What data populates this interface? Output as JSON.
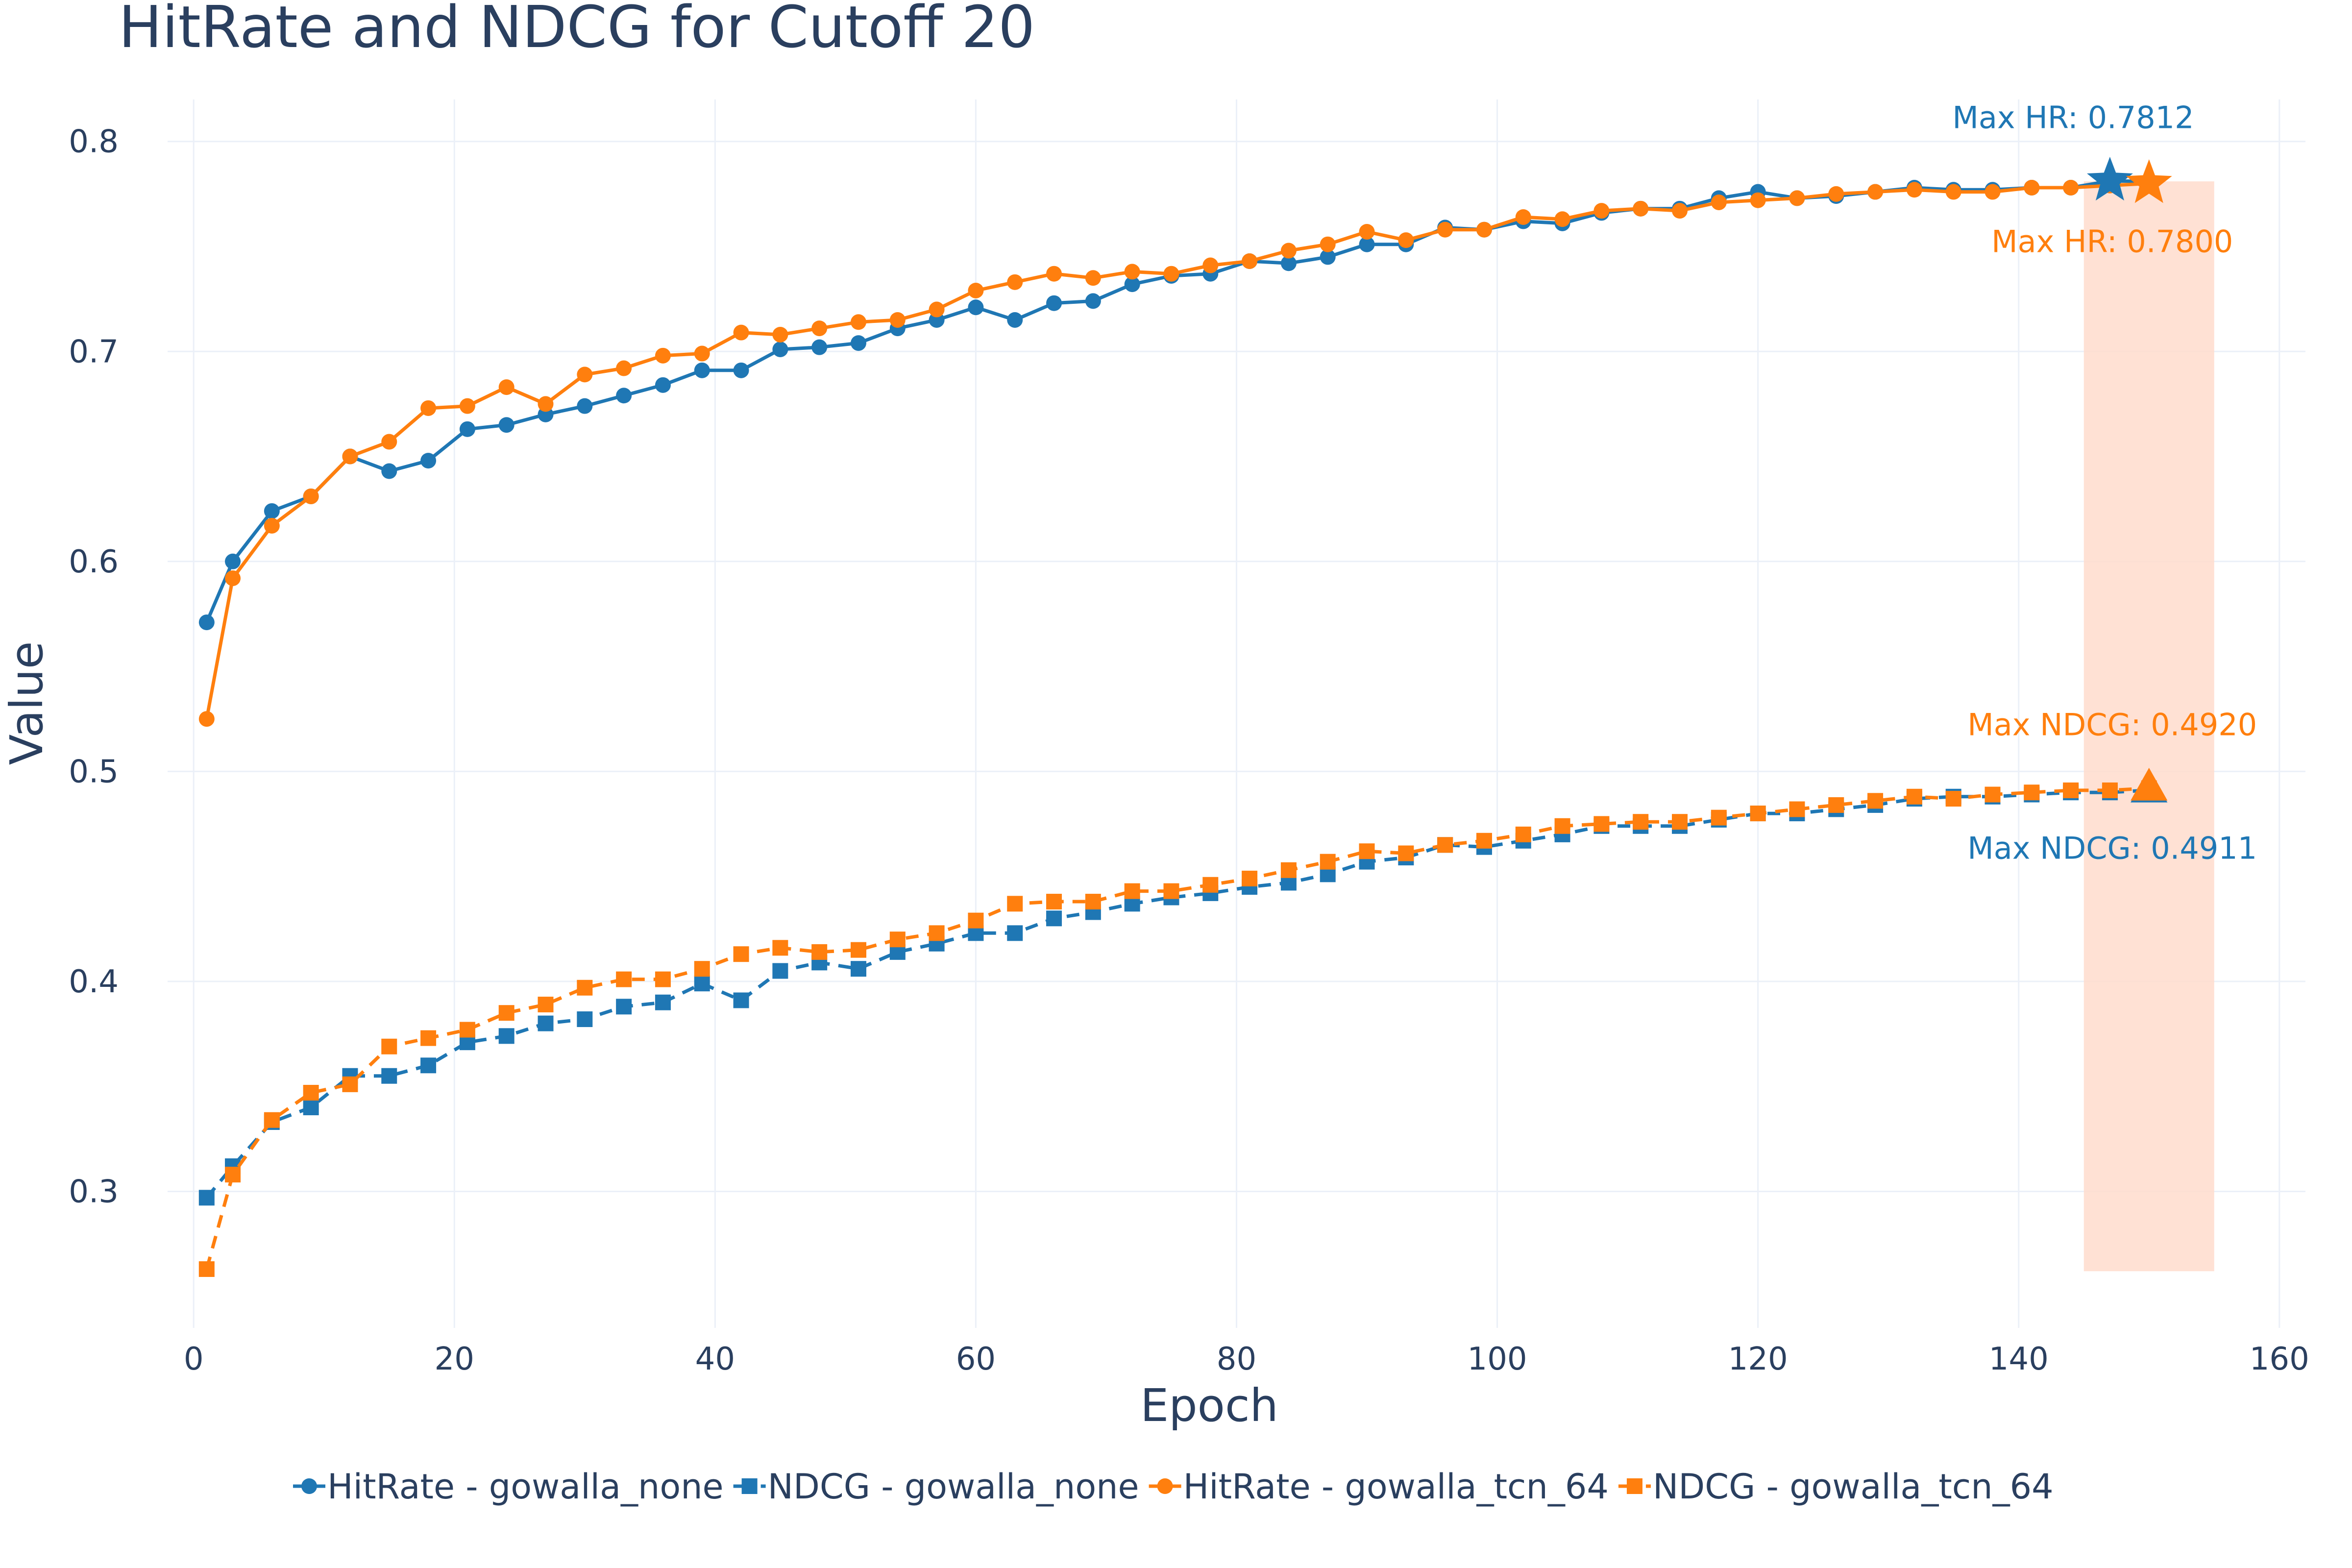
{
  "chart_data": {
    "type": "line",
    "title": "HitRate and NDCG for Cutoff 20",
    "xlabel": "Epoch",
    "ylabel": "Value",
    "xlim": [
      -2,
      162
    ],
    "ylim": [
      0.235,
      0.82
    ],
    "xticks": [
      "0",
      "20",
      "40",
      "60",
      "80",
      "100",
      "120",
      "140",
      "160"
    ],
    "yticks": [
      "0.3",
      "0.4",
      "0.5",
      "0.6",
      "0.7",
      "0.8"
    ],
    "grid": true,
    "legend_position": "bottom",
    "x": [
      1,
      3,
      6,
      9,
      12,
      15,
      18,
      21,
      24,
      27,
      30,
      33,
      36,
      39,
      42,
      45,
      48,
      51,
      54,
      57,
      60,
      63,
      66,
      69,
      72,
      75,
      78,
      81,
      84,
      87,
      90,
      93,
      96,
      99,
      102,
      105,
      108,
      111,
      114,
      117,
      120,
      123,
      126,
      129,
      132,
      135,
      138,
      141,
      144,
      147,
      150
    ],
    "series": [
      {
        "name": "HitRate - gowalla_none",
        "color": "#1f77b4",
        "marker": "circle",
        "dash": "solid",
        "values": [
          0.571,
          0.6,
          0.624,
          0.631,
          0.65,
          0.643,
          0.648,
          0.663,
          0.665,
          0.67,
          0.674,
          0.679,
          0.684,
          0.691,
          0.691,
          0.701,
          0.702,
          0.704,
          0.711,
          0.715,
          0.721,
          0.715,
          0.723,
          0.724,
          0.732,
          0.736,
          0.737,
          0.743,
          0.742,
          0.745,
          0.751,
          0.751,
          0.759,
          0.758,
          0.762,
          0.761,
          0.766,
          0.768,
          0.768,
          0.773,
          0.776,
          0.773,
          0.774,
          0.776,
          0.778,
          0.777,
          0.777,
          0.778,
          0.778,
          0.7812,
          0.781
        ]
      },
      {
        "name": "NDCG - gowalla_none",
        "color": "#1f77b4",
        "marker": "square",
        "dash": "dash",
        "values": [
          0.297,
          0.312,
          0.333,
          0.34,
          0.355,
          0.355,
          0.36,
          0.371,
          0.374,
          0.38,
          0.382,
          0.388,
          0.39,
          0.399,
          0.391,
          0.405,
          0.409,
          0.406,
          0.414,
          0.418,
          0.423,
          0.423,
          0.43,
          0.433,
          0.437,
          0.44,
          0.442,
          0.445,
          0.447,
          0.451,
          0.457,
          0.459,
          0.465,
          0.464,
          0.467,
          0.47,
          0.474,
          0.474,
          0.474,
          0.477,
          0.48,
          0.48,
          0.482,
          0.484,
          0.487,
          0.488,
          0.488,
          0.489,
          0.49,
          0.49,
          0.4911
        ]
      },
      {
        "name": "HitRate - gowalla_tcn_64",
        "color": "#ff7f0e",
        "marker": "circle",
        "dash": "solid",
        "values": [
          0.525,
          0.592,
          0.617,
          0.631,
          0.65,
          0.657,
          0.673,
          0.674,
          0.683,
          0.675,
          0.689,
          0.692,
          0.698,
          0.699,
          0.709,
          0.708,
          0.711,
          0.714,
          0.715,
          0.72,
          0.729,
          0.733,
          0.737,
          0.735,
          0.738,
          0.737,
          0.741,
          0.743,
          0.748,
          0.751,
          0.757,
          0.753,
          0.758,
          0.758,
          0.764,
          0.763,
          0.767,
          0.768,
          0.767,
          0.771,
          0.772,
          0.773,
          0.775,
          0.776,
          0.777,
          0.776,
          0.776,
          0.778,
          0.778,
          0.779,
          0.78
        ]
      },
      {
        "name": "NDCG - gowalla_tcn_64",
        "color": "#ff7f0e",
        "marker": "square",
        "dash": "dash",
        "values": [
          0.263,
          0.308,
          0.334,
          0.347,
          0.351,
          0.369,
          0.373,
          0.377,
          0.385,
          0.389,
          0.397,
          0.401,
          0.401,
          0.406,
          0.413,
          0.416,
          0.414,
          0.415,
          0.42,
          0.423,
          0.429,
          0.437,
          0.438,
          0.438,
          0.443,
          0.443,
          0.446,
          0.449,
          0.453,
          0.457,
          0.462,
          0.461,
          0.465,
          0.467,
          0.47,
          0.474,
          0.475,
          0.476,
          0.476,
          0.478,
          0.48,
          0.482,
          0.484,
          0.486,
          0.488,
          0.487,
          0.489,
          0.49,
          0.491,
          0.491,
          0.492
        ]
      }
    ],
    "markers": [
      {
        "series": "HitRate - gowalla_none",
        "symbol": "star",
        "x": 147,
        "y": 0.7812
      },
      {
        "series": "HitRate - gowalla_tcn_64",
        "symbol": "star",
        "x": 150,
        "y": 0.78
      },
      {
        "series": "NDCG - gowalla_none",
        "symbol": "triangle",
        "x": 150,
        "y": 0.4911
      },
      {
        "series": "NDCG - gowalla_tcn_64",
        "symbol": "triangle",
        "x": 150,
        "y": 0.492
      }
    ],
    "highlight_band": {
      "x0": 145,
      "x1": 155,
      "y0": 0.262,
      "y1": 0.781,
      "color": "#ffdccc"
    },
    "annotations": [
      {
        "text": "Max HR: 0.7812",
        "color": "#1f77b4",
        "x": 147,
        "y": 0.7812,
        "pos": "above"
      },
      {
        "text": "Max HR: 0.7800",
        "color": "#ff7f0e",
        "x": 150,
        "y": 0.78,
        "pos": "below"
      },
      {
        "text": "Max NDCG: 0.4920",
        "color": "#ff7f0e",
        "x": 150,
        "y": 0.492,
        "pos": "above"
      },
      {
        "text": "Max NDCG: 0.4911",
        "color": "#1f77b4",
        "x": 150,
        "y": 0.4911,
        "pos": "below"
      }
    ]
  }
}
